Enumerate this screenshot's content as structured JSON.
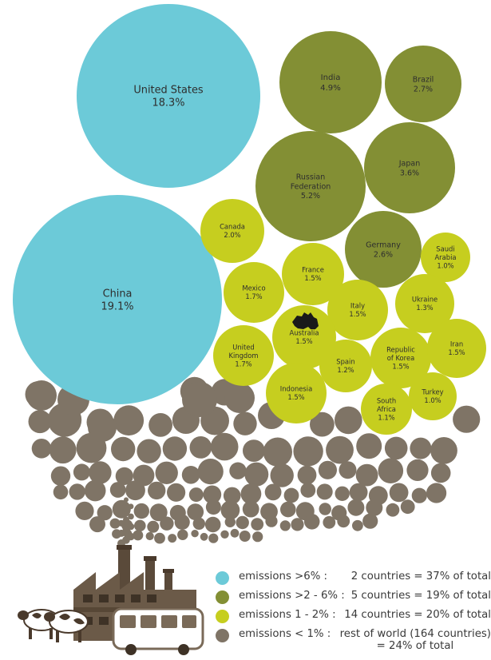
{
  "chart_data": {
    "type": "bubble",
    "colors": {
      "tier1": "#6ccad8",
      "tier2": "#838f34",
      "tier3": "#c6ce1f",
      "tier4": "#7f7466",
      "australia_icon": "#1a1a1a"
    },
    "countries": [
      {
        "name": "United States",
        "value_label": "18.3%",
        "value": 18.3,
        "tier": "tier1"
      },
      {
        "name": "China",
        "value_label": "19.1%",
        "value": 19.1,
        "tier": "tier1"
      },
      {
        "name": "India",
        "value_label": "4.9%",
        "value": 4.9,
        "tier": "tier2"
      },
      {
        "name": "Brazil",
        "value_label": "2.7%",
        "value": 2.7,
        "tier": "tier2"
      },
      {
        "name": "Russian Federation",
        "name_lines": [
          "Russian",
          "Federation"
        ],
        "value_label": "5.2%",
        "value": 5.2,
        "tier": "tier2"
      },
      {
        "name": "Japan",
        "value_label": "3.6%",
        "value": 3.6,
        "tier": "tier2"
      },
      {
        "name": "Germany",
        "value_label": "2.6%",
        "value": 2.6,
        "tier": "tier2"
      },
      {
        "name": "Canada",
        "value_label": "2.0%",
        "value": 2.0,
        "tier": "tier3"
      },
      {
        "name": "Saudi Arabia",
        "name_lines": [
          "Saudi",
          "Arabia"
        ],
        "value_label": "1.0%",
        "value": 1.0,
        "tier": "tier3"
      },
      {
        "name": "France",
        "value_label": "1.5%",
        "value": 1.5,
        "tier": "tier3"
      },
      {
        "name": "Mexico",
        "value_label": "1.7%",
        "value": 1.7,
        "tier": "tier3"
      },
      {
        "name": "Italy",
        "value_label": "1.5%",
        "value": 1.5,
        "tier": "tier3"
      },
      {
        "name": "Ukraine",
        "value_label": "1.3%",
        "value": 1.3,
        "tier": "tier3"
      },
      {
        "name": "Australia",
        "value_label": "1.5%",
        "value": 1.5,
        "tier": "tier3"
      },
      {
        "name": "United Kingdom",
        "name_lines": [
          "United",
          "Kingdom"
        ],
        "value_label": "1.7%",
        "value": 1.7,
        "tier": "tier3"
      },
      {
        "name": "Republic of Korea",
        "name_lines": [
          "Republic",
          "of Korea"
        ],
        "value_label": "1.5%",
        "value": 1.5,
        "tier": "tier3"
      },
      {
        "name": "Iran",
        "value_label": "1.5%",
        "value": 1.5,
        "tier": "tier3"
      },
      {
        "name": "Spain",
        "value_label": "1.2%",
        "value": 1.2,
        "tier": "tier3"
      },
      {
        "name": "Indonesia",
        "value_label": "1.5%",
        "value": 1.5,
        "tier": "tier3"
      },
      {
        "name": "South Africa",
        "name_lines": [
          "South",
          "Africa"
        ],
        "value_label": "1.1%",
        "value": 1.1,
        "tier": "tier3"
      },
      {
        "name": "Turkey",
        "value_label": "1.0%",
        "value": 1.0,
        "tier": "tier3"
      }
    ],
    "rest_of_world": {
      "tier": "tier4",
      "countries": 164
    },
    "legend": [
      {
        "tier": "tier1",
        "label": "emissions >6% :",
        "total": "2 countries = 37% of total"
      },
      {
        "tier": "tier2",
        "label": "emissions >2 - 6% :",
        "total": "5 countries = 19% of total"
      },
      {
        "tier": "tier3",
        "label": "emissions 1 - 2% :",
        "total": "14 countries = 20% of total"
      },
      {
        "tier": "tier4",
        "label": "emissions < 1% :",
        "total": "rest of world (164 countries)",
        "total_line2": "= 24% of total"
      }
    ]
  }
}
